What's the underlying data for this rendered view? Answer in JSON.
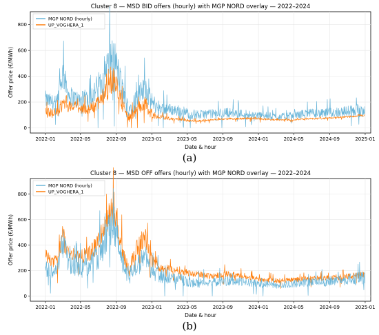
{
  "colors": {
    "mgp": "#6bb6d9",
    "up": "#ff7f0e",
    "grid": "#e6e6e6",
    "axis": "#000000"
  },
  "chart_data": [
    {
      "type": "line",
      "panel_label": "(a)",
      "title": "Cluster 8 — MSD BID offers (hourly) with MGP NORD overlay — 2022–2024",
      "xlabel": "Date & hour",
      "ylabel": "Offer price (€/MWh)",
      "xlim": [
        "2021-11-10",
        "2025-01-20"
      ],
      "ylim": [
        -40,
        900
      ],
      "x_ticks": [
        "2022-01",
        "2022-05",
        "2022-09",
        "2023-01",
        "2023-05",
        "2023-09",
        "2024-01",
        "2024-05",
        "2024-09",
        "2025-01"
      ],
      "y_ticks": [
        0,
        200,
        400,
        600,
        800
      ],
      "grid": true,
      "legend_position": "top-left",
      "series": [
        {
          "name": "MGP NORD (hourly)",
          "color_key": "mgp",
          "x": [
            "2022-01-01",
            "2022-01-20",
            "2022-02-10",
            "2022-03-01",
            "2022-03-10",
            "2022-03-20",
            "2022-04-10",
            "2022-05-01",
            "2022-05-20",
            "2022-06-10",
            "2022-07-01",
            "2022-07-20",
            "2022-08-10",
            "2022-08-25",
            "2022-09-05",
            "2022-09-25",
            "2022-10-15",
            "2022-11-01",
            "2022-11-20",
            "2022-12-10",
            "2022-12-25",
            "2023-01-15",
            "2023-02-10",
            "2023-03-10",
            "2023-04-10",
            "2023-05-10",
            "2023-06-10",
            "2023-07-10",
            "2023-08-10",
            "2023-09-10",
            "2023-10-10",
            "2023-11-10",
            "2023-12-10",
            "2024-01-10",
            "2024-02-10",
            "2024-03-10",
            "2024-04-10",
            "2024-05-10",
            "2024-06-10",
            "2024-07-10",
            "2024-08-10",
            "2024-09-10",
            "2024-10-10",
            "2024-11-10",
            "2024-12-10",
            "2024-12-31"
          ],
          "y": [
            220,
            200,
            190,
            420,
            360,
            260,
            230,
            210,
            220,
            250,
            320,
            420,
            520,
            560,
            440,
            260,
            150,
            200,
            250,
            320,
            220,
            170,
            150,
            140,
            130,
            110,
            100,
            110,
            110,
            120,
            115,
            110,
            105,
            95,
            90,
            85,
            90,
            100,
            110,
            115,
            110,
            120,
            125,
            130,
            135,
            140
          ],
          "amplitude": [
            70,
            60,
            60,
            120,
            100,
            80,
            70,
            70,
            80,
            90,
            110,
            130,
            150,
            160,
            140,
            90,
            70,
            80,
            90,
            100,
            80,
            60,
            50,
            45,
            45,
            40,
            35,
            35,
            35,
            40,
            35,
            35,
            30,
            30,
            30,
            25,
            30,
            30,
            35,
            35,
            35,
            40,
            40,
            45,
            55,
            50
          ]
        },
        {
          "name": "UP_VOGHERA_1",
          "color_key": "up",
          "x": [
            "2022-01-01",
            "2022-01-20",
            "2022-02-10",
            "2022-03-01",
            "2022-03-10",
            "2022-03-20",
            "2022-04-10",
            "2022-05-01",
            "2022-05-20",
            "2022-06-10",
            "2022-07-01",
            "2022-07-20",
            "2022-08-10",
            "2022-08-25",
            "2022-09-05",
            "2022-09-25",
            "2022-10-15",
            "2022-11-01",
            "2022-11-20",
            "2022-12-10",
            "2022-12-25",
            "2023-01-15",
            "2023-02-10",
            "2023-03-10",
            "2023-04-10",
            "2023-05-10",
            "2023-06-10",
            "2023-07-10",
            "2023-08-10",
            "2023-09-10",
            "2023-10-10",
            "2023-11-10",
            "2023-12-10",
            "2024-01-10",
            "2024-02-10",
            "2024-03-10",
            "2024-04-10",
            "2024-05-10",
            "2024-06-10",
            "2024-07-10",
            "2024-08-10",
            "2024-09-10",
            "2024-10-10",
            "2024-11-10",
            "2024-12-10",
            "2024-12-31"
          ],
          "y": [
            110,
            120,
            110,
            190,
            230,
            170,
            170,
            150,
            150,
            160,
            200,
            250,
            330,
            380,
            300,
            160,
            80,
            120,
            160,
            200,
            120,
            90,
            80,
            70,
            65,
            55,
            55,
            60,
            65,
            70,
            70,
            72,
            75,
            70,
            65,
            60,
            62,
            65,
            70,
            72,
            72,
            78,
            82,
            88,
            95,
            100
          ],
          "amplitude": [
            50,
            40,
            40,
            70,
            70,
            50,
            40,
            40,
            40,
            45,
            60,
            70,
            90,
            100,
            80,
            55,
            40,
            45,
            50,
            60,
            45,
            20,
            15,
            12,
            10,
            8,
            8,
            8,
            8,
            8,
            8,
            8,
            8,
            8,
            8,
            6,
            6,
            6,
            6,
            6,
            6,
            6,
            6,
            8,
            10,
            10
          ]
        }
      ]
    },
    {
      "type": "line",
      "panel_label": "(b)",
      "title": "Cluster 8 — MSD OFF offers (hourly) with MGP NORD overlay — 2022–2024",
      "xlabel": "Date & hour",
      "ylabel": "Offer price (€/MWh)",
      "xlim": [
        "2021-11-10",
        "2025-01-20"
      ],
      "ylim": [
        -40,
        920
      ],
      "x_ticks": [
        "2022-01",
        "2022-05",
        "2022-09",
        "2023-01",
        "2023-05",
        "2023-09",
        "2024-01",
        "2024-05",
        "2024-09",
        "2025-01"
      ],
      "y_ticks": [
        0,
        200,
        400,
        600,
        800
      ],
      "grid": true,
      "legend_position": "top-left",
      "series": [
        {
          "name": "MGP NORD (hourly)",
          "color_key": "mgp",
          "x": [
            "2022-01-01",
            "2022-01-20",
            "2022-02-10",
            "2022-03-01",
            "2022-03-10",
            "2022-03-20",
            "2022-04-10",
            "2022-05-01",
            "2022-05-20",
            "2022-06-10",
            "2022-07-01",
            "2022-07-20",
            "2022-08-10",
            "2022-08-25",
            "2022-09-05",
            "2022-09-25",
            "2022-10-15",
            "2022-11-01",
            "2022-11-20",
            "2022-12-10",
            "2022-12-25",
            "2023-01-15",
            "2023-02-10",
            "2023-03-10",
            "2023-04-10",
            "2023-05-10",
            "2023-06-10",
            "2023-07-10",
            "2023-08-10",
            "2023-09-10",
            "2023-10-10",
            "2023-11-10",
            "2023-12-10",
            "2024-01-10",
            "2024-02-10",
            "2024-03-10",
            "2024-04-10",
            "2024-05-10",
            "2024-06-10",
            "2024-07-10",
            "2024-08-10",
            "2024-09-10",
            "2024-10-10",
            "2024-11-10",
            "2024-12-10",
            "2024-12-31"
          ],
          "y": [
            220,
            200,
            190,
            420,
            360,
            260,
            230,
            210,
            220,
            250,
            320,
            420,
            520,
            560,
            440,
            260,
            150,
            200,
            250,
            320,
            220,
            170,
            150,
            140,
            130,
            110,
            100,
            110,
            110,
            120,
            115,
            110,
            105,
            95,
            90,
            85,
            90,
            100,
            110,
            115,
            110,
            120,
            125,
            130,
            135,
            140
          ],
          "amplitude": [
            70,
            60,
            60,
            120,
            100,
            80,
            70,
            70,
            80,
            90,
            110,
            130,
            150,
            160,
            140,
            90,
            70,
            80,
            90,
            100,
            80,
            60,
            50,
            45,
            45,
            40,
            35,
            35,
            35,
            40,
            35,
            35,
            30,
            30,
            30,
            25,
            30,
            30,
            35,
            35,
            35,
            40,
            40,
            45,
            55,
            50
          ]
        },
        {
          "name": "UP_VOGHERA_1",
          "color_key": "up",
          "x": [
            "2022-01-01",
            "2022-01-20",
            "2022-02-10",
            "2022-03-01",
            "2022-03-10",
            "2022-03-20",
            "2022-04-10",
            "2022-05-01",
            "2022-05-20",
            "2022-06-10",
            "2022-07-01",
            "2022-07-20",
            "2022-08-10",
            "2022-08-25",
            "2022-09-05",
            "2022-09-25",
            "2022-10-15",
            "2022-11-01",
            "2022-11-20",
            "2022-12-10",
            "2022-12-25",
            "2023-01-15",
            "2023-02-10",
            "2023-03-10",
            "2023-04-10",
            "2023-05-10",
            "2023-06-10",
            "2023-07-10",
            "2023-08-10",
            "2023-09-10",
            "2023-10-10",
            "2023-11-10",
            "2023-12-10",
            "2024-01-10",
            "2024-02-10",
            "2024-03-10",
            "2024-04-10",
            "2024-05-10",
            "2024-06-10",
            "2024-07-10",
            "2024-08-10",
            "2024-09-10",
            "2024-10-10",
            "2024-11-10",
            "2024-12-10",
            "2024-12-31"
          ],
          "y": [
            320,
            280,
            270,
            480,
            400,
            340,
            320,
            310,
            320,
            350,
            420,
            520,
            620,
            700,
            560,
            330,
            200,
            330,
            400,
            470,
            300,
            240,
            220,
            210,
            200,
            180,
            170,
            160,
            160,
            175,
            165,
            150,
            140,
            130,
            125,
            120,
            125,
            130,
            135,
            140,
            140,
            145,
            150,
            155,
            160,
            165
          ],
          "amplitude": [
            60,
            50,
            50,
            100,
            80,
            60,
            50,
            50,
            60,
            70,
            90,
            110,
            130,
            140,
            120,
            70,
            50,
            70,
            80,
            90,
            60,
            40,
            35,
            30,
            30,
            25,
            25,
            25,
            25,
            25,
            25,
            20,
            20,
            20,
            20,
            20,
            20,
            20,
            20,
            20,
            20,
            20,
            25,
            25,
            30,
            30
          ]
        }
      ]
    }
  ]
}
